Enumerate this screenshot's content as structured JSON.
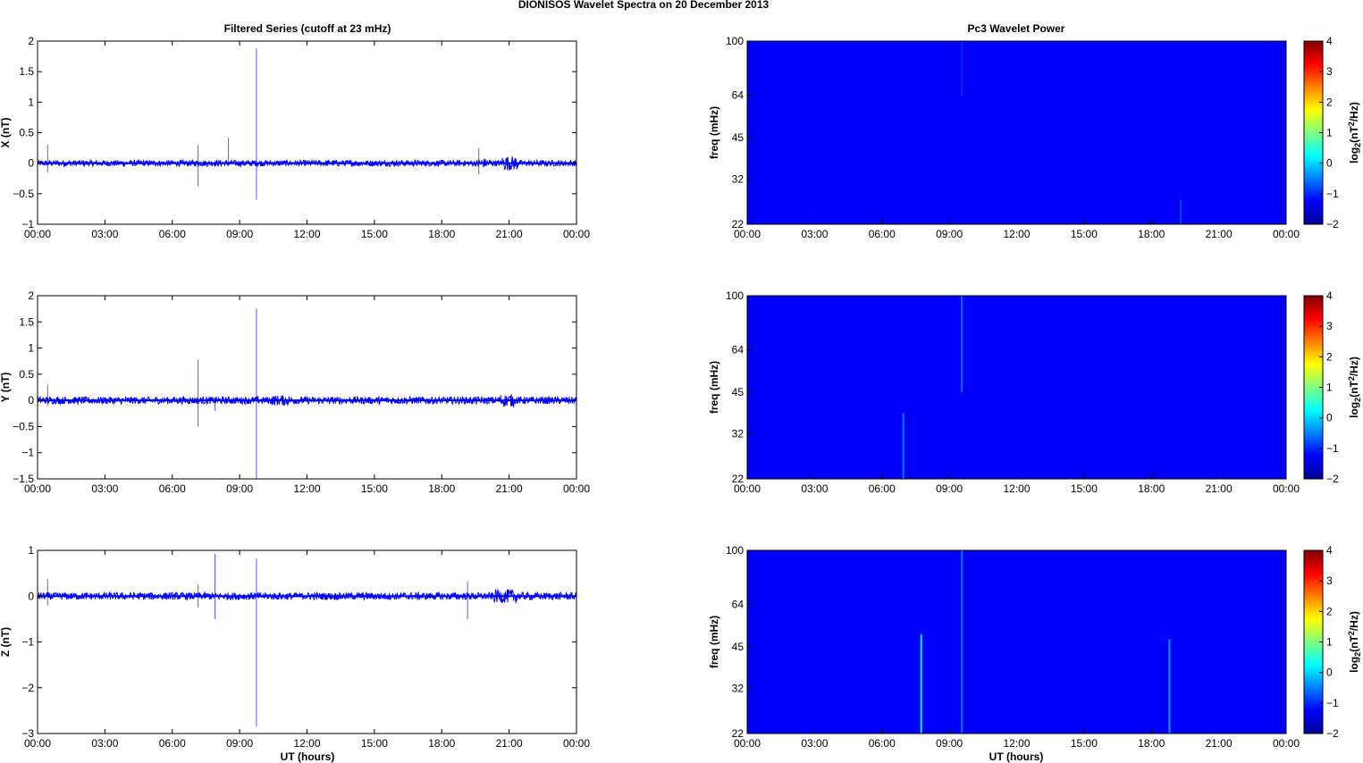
{
  "figure": {
    "suptitle": "DIONISOS Wavelet Spectra on 20 December  2013",
    "left_title": "Filtered Series (cutoff at 23 mHz)",
    "right_title": "Pc3 Wavelet Power",
    "xlabel": "UT (hours)",
    "colorbar_label": "log2(nT2/Hz)"
  },
  "chart_data": [
    {
      "type": "line",
      "name_id": "x-series",
      "xlabel": "",
      "ylabel": "X (nT)",
      "x_ticks": [
        "00:00",
        "03:00",
        "06:00",
        "09:00",
        "12:00",
        "15:00",
        "18:00",
        "21:00",
        "00:00"
      ],
      "x_range_hours": [
        0,
        24
      ],
      "ylim": [
        -1,
        2
      ],
      "y_ticks": [
        -1,
        -0.5,
        0,
        0.5,
        1,
        1.5,
        2
      ],
      "y_tick_labels": [
        "-1",
        "-0.5",
        "0",
        "0.5",
        "1",
        "1.5",
        "2"
      ],
      "color": "#0000ff",
      "noise_band_nT": 0.05,
      "bursts": [
        {
          "hour_start": 19.6,
          "hour_end": 20.2,
          "amplitude_nT": 0.08
        },
        {
          "hour_start": 20.7,
          "hour_end": 21.4,
          "amplitude_nT": 0.12
        }
      ],
      "spikes": [
        {
          "hour": 0.45,
          "max": 0.3,
          "min": -0.15
        },
        {
          "hour": 7.15,
          "max": 0.3,
          "min": -0.38
        },
        {
          "hour": 8.5,
          "max": 0.42,
          "min": -0.05
        },
        {
          "hour": 9.75,
          "max": 1.88,
          "min": -0.6
        },
        {
          "hour": 19.65,
          "max": 0.25,
          "min": -0.18
        }
      ]
    },
    {
      "type": "line",
      "name_id": "y-series",
      "xlabel": "",
      "ylabel": "Y (nT)",
      "x_ticks": [
        "00:00",
        "03:00",
        "06:00",
        "09:00",
        "12:00",
        "15:00",
        "18:00",
        "21:00",
        "00:00"
      ],
      "x_range_hours": [
        0,
        24
      ],
      "ylim": [
        -1.5,
        2
      ],
      "y_ticks": [
        -1.5,
        -1,
        -0.5,
        0,
        0.5,
        1,
        1.5,
        2
      ],
      "y_tick_labels": [
        "-1.5",
        "-1",
        "-0.5",
        "0",
        "0.5",
        "1",
        "1.5",
        "2"
      ],
      "color": "#0000ff",
      "noise_band_nT": 0.07,
      "bursts": [
        {
          "hour_start": 10.4,
          "hour_end": 11.2,
          "amplitude_nT": 0.1
        },
        {
          "hour_start": 20.6,
          "hour_end": 21.2,
          "amplitude_nT": 0.12
        }
      ],
      "spikes": [
        {
          "hour": 0.45,
          "max": 0.3,
          "min": -0.1
        },
        {
          "hour": 7.15,
          "max": 0.78,
          "min": -0.5
        },
        {
          "hour": 7.9,
          "max": 0.05,
          "min": -0.2
        },
        {
          "hour": 9.75,
          "max": 1.75,
          "min": -1.5
        }
      ]
    },
    {
      "type": "line",
      "name_id": "z-series",
      "xlabel": "UT (hours)",
      "ylabel": "Z (nT)",
      "x_ticks": [
        "00:00",
        "03:00",
        "06:00",
        "09:00",
        "12:00",
        "15:00",
        "18:00",
        "21:00",
        "00:00"
      ],
      "x_range_hours": [
        0,
        24
      ],
      "ylim": [
        -3,
        1
      ],
      "y_ticks": [
        -3,
        -2,
        -1,
        0,
        1
      ],
      "y_tick_labels": [
        "-3",
        "-2",
        "-1",
        "0",
        "1"
      ],
      "color": "#0000ff",
      "noise_band_nT": 0.08,
      "bursts": [
        {
          "hour_start": 20.3,
          "hour_end": 21.4,
          "amplitude_nT": 0.15
        }
      ],
      "spikes": [
        {
          "hour": 0.45,
          "max": 0.38,
          "min": -0.2
        },
        {
          "hour": 7.15,
          "max": 0.25,
          "min": -0.25
        },
        {
          "hour": 7.9,
          "max": 0.92,
          "min": -0.5
        },
        {
          "hour": 9.75,
          "max": 0.82,
          "min": -2.85
        },
        {
          "hour": 19.15,
          "max": 0.32,
          "min": -0.5
        }
      ]
    },
    {
      "type": "heatmap",
      "name_id": "x-wavelet",
      "ylabel": "freq (mHz)",
      "x_ticks": [
        "00:00",
        "03:00",
        "06:00",
        "09:00",
        "12:00",
        "15:00",
        "18:00",
        "21:00",
        "00:00"
      ],
      "y_scale": "log",
      "y_ticks": [
        22,
        32,
        45,
        64,
        100
      ],
      "ylim_mHz": [
        22,
        100
      ],
      "colorbar": {
        "min": -2,
        "max": 4,
        "ticks": [
          -2,
          -1,
          0,
          1,
          2,
          3,
          4
        ]
      },
      "background_value": -2,
      "features": [
        {
          "hour": 9.55,
          "f_low": 64,
          "f_high": 100,
          "value": -1.7
        },
        {
          "hour": 19.3,
          "f_low": 22,
          "f_high": 27,
          "value": -1.5
        }
      ]
    },
    {
      "type": "heatmap",
      "name_id": "y-wavelet",
      "ylabel": "freq (mHz)",
      "x_ticks": [
        "00:00",
        "03:00",
        "06:00",
        "09:00",
        "12:00",
        "15:00",
        "18:00",
        "21:00",
        "00:00"
      ],
      "y_scale": "log",
      "y_ticks": [
        22,
        32,
        45,
        64,
        100
      ],
      "ylim_mHz": [
        22,
        100
      ],
      "colorbar": {
        "min": -2,
        "max": 4,
        "ticks": [
          -2,
          -1,
          0,
          1,
          2,
          3,
          4
        ]
      },
      "background_value": -2,
      "features": [
        {
          "hour": 6.95,
          "f_low": 22,
          "f_high": 38,
          "value": -1.2
        },
        {
          "hour": 9.55,
          "f_low": 45,
          "f_high": 100,
          "value": -1.3
        }
      ]
    },
    {
      "type": "heatmap",
      "name_id": "z-wavelet",
      "ylabel": "freq (mHz)",
      "x_ticks": [
        "00:00",
        "03:00",
        "06:00",
        "09:00",
        "12:00",
        "15:00",
        "18:00",
        "21:00",
        "00:00"
      ],
      "y_scale": "log",
      "y_ticks": [
        22,
        32,
        45,
        64,
        100
      ],
      "ylim_mHz": [
        22,
        100
      ],
      "colorbar": {
        "min": -2,
        "max": 4,
        "ticks": [
          -2,
          -1,
          0,
          1,
          2,
          3,
          4
        ]
      },
      "background_value": -2,
      "features": [
        {
          "hour": 7.75,
          "f_low": 22,
          "f_high": 50,
          "value": -0.4
        },
        {
          "hour": 9.55,
          "f_low": 22,
          "f_high": 100,
          "value": -1.2
        },
        {
          "hour": 18.8,
          "f_low": 22,
          "f_high": 48,
          "value": -1.0
        }
      ]
    }
  ]
}
